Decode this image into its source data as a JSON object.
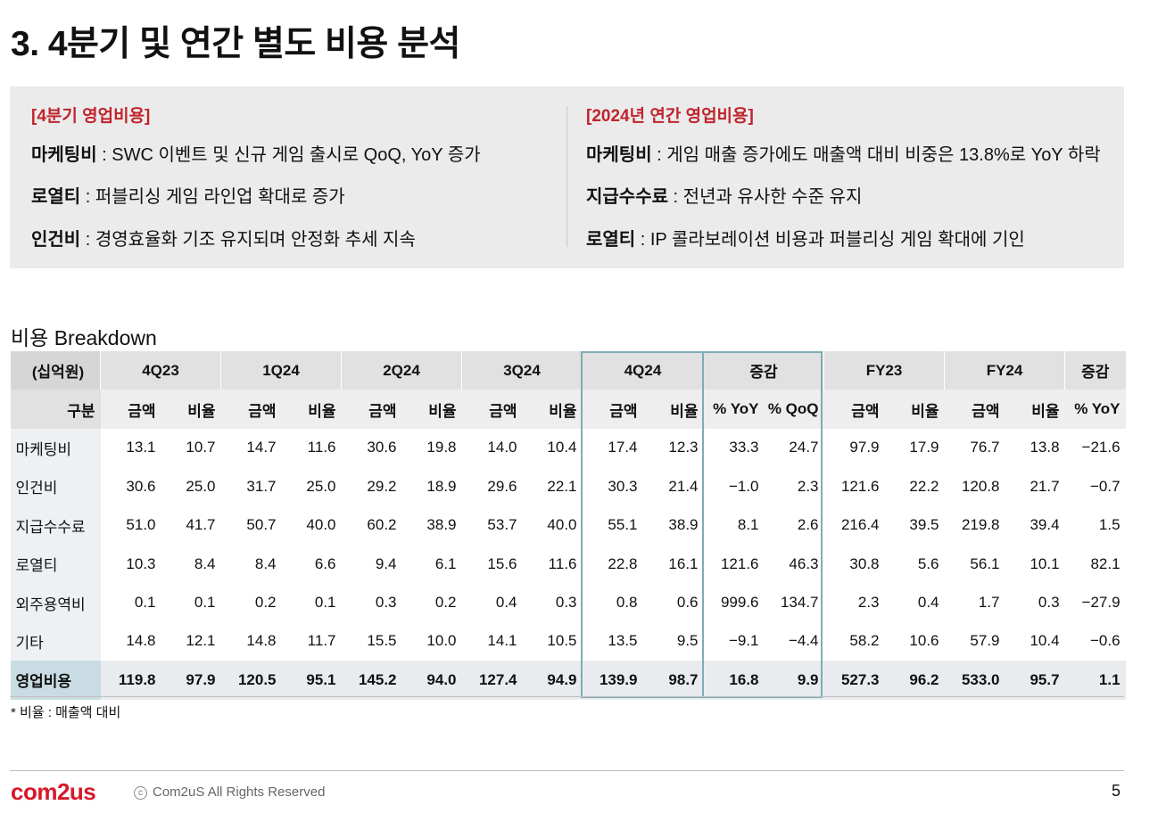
{
  "title": "3. 4분기 및 연간 별도 비용 분석",
  "summary": {
    "left": {
      "heading": "[4분기 영업비용]",
      "items": [
        {
          "term": "마케팅비",
          "text": " : SWC 이벤트 및 신규 게임 출시로 QoQ, YoY 증가"
        },
        {
          "term": "로열티",
          "text": " : 퍼블리싱 게임 라인업 확대로 증가"
        },
        {
          "term": "인건비",
          "text": " : 경영효율화 기조 유지되며 안정화 추세 지속"
        }
      ]
    },
    "right": {
      "heading": "[2024년 연간 영업비용]",
      "items": [
        {
          "term": "마케팅비",
          "text": " : 게임 매출 증가에도 매출액 대비 비중은 13.8%로 YoY 하락"
        },
        {
          "term": "지급수수료",
          "text": " : 전년과 유사한 수준 유지"
        },
        {
          "term": "로열티",
          "text": " : IP 콜라보레이션 비용과 퍼블리싱 게임 확대에 기인"
        }
      ]
    }
  },
  "breakdown": {
    "title": "비용 Breakdown",
    "unit": "(십억원)",
    "groups": [
      "4Q23",
      "1Q24",
      "2Q24",
      "3Q24",
      "4Q24",
      "증감",
      "FY23",
      "FY24",
      "증감"
    ],
    "row_label_header": "구분",
    "subheaders": [
      "금액",
      "비율",
      "금액",
      "비율",
      "금액",
      "비율",
      "금액",
      "비율",
      "금액",
      "비율",
      "% YoY",
      "% QoQ",
      "금액",
      "비율",
      "금액",
      "비율",
      "% YoY"
    ],
    "rows": [
      {
        "label": "마케팅비",
        "values": [
          "13.1",
          "10.7",
          "14.7",
          "11.6",
          "30.6",
          "19.8",
          "14.0",
          "10.4",
          "17.4",
          "12.3",
          "33.3",
          "24.7",
          "97.9",
          "17.9",
          "76.7",
          "13.8",
          "−21.6"
        ]
      },
      {
        "label": "인건비",
        "values": [
          "30.6",
          "25.0",
          "31.7",
          "25.0",
          "29.2",
          "18.9",
          "29.6",
          "22.1",
          "30.3",
          "21.4",
          "−1.0",
          "2.3",
          "121.6",
          "22.2",
          "120.8",
          "21.7",
          "−0.7"
        ]
      },
      {
        "label": "지급수수료",
        "values": [
          "51.0",
          "41.7",
          "50.7",
          "40.0",
          "60.2",
          "38.9",
          "53.7",
          "40.0",
          "55.1",
          "38.9",
          "8.1",
          "2.6",
          "216.4",
          "39.5",
          "219.8",
          "39.4",
          "1.5"
        ]
      },
      {
        "label": "로열티",
        "values": [
          "10.3",
          "8.4",
          "8.4",
          "6.6",
          "9.4",
          "6.1",
          "15.6",
          "11.6",
          "22.8",
          "16.1",
          "121.6",
          "46.3",
          "30.8",
          "5.6",
          "56.1",
          "10.1",
          "82.1"
        ]
      },
      {
        "label": "외주용역비",
        "values": [
          "0.1",
          "0.1",
          "0.2",
          "0.1",
          "0.3",
          "0.2",
          "0.4",
          "0.3",
          "0.8",
          "0.6",
          "999.6",
          "134.7",
          "2.3",
          "0.4",
          "1.7",
          "0.3",
          "−27.9"
        ]
      },
      {
        "label": "기타",
        "values": [
          "14.8",
          "12.1",
          "14.8",
          "11.7",
          "15.5",
          "10.0",
          "14.1",
          "10.5",
          "13.5",
          "9.5",
          "−9.1",
          "−4.4",
          "58.2",
          "10.6",
          "57.9",
          "10.4",
          "−0.6"
        ]
      }
    ],
    "total": {
      "label": "영업비용",
      "values": [
        "119.8",
        "97.9",
        "120.5",
        "95.1",
        "145.2",
        "94.0",
        "127.4",
        "94.9",
        "139.9",
        "98.7",
        "16.8",
        "9.9",
        "527.3",
        "96.2",
        "533.0",
        "95.7",
        "1.1"
      ]
    },
    "note": "* 비율 : 매출액 대비"
  },
  "footer": {
    "logo": "com2us",
    "copyright_icon": "c",
    "copyright": "Com2uS All Rights Reserved",
    "page": "5"
  },
  "colors": {
    "accent_red": "#c0242c",
    "highlight_border": "#7fabb6",
    "summary_bg": "#ebebeb"
  }
}
